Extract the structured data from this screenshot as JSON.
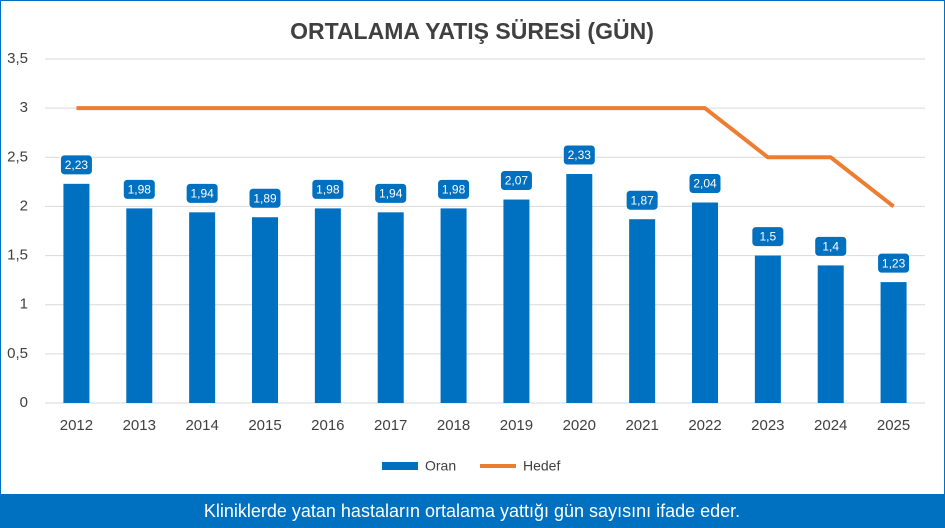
{
  "chart_data": {
    "type": "bar",
    "title": "ORTALAMA YATIŞ SÜRESİ (GÜN)",
    "categories": [
      "2012",
      "2013",
      "2014",
      "2015",
      "2016",
      "2017",
      "2018",
      "2019",
      "2020",
      "2021",
      "2022",
      "2023",
      "2024",
      "2025"
    ],
    "series": [
      {
        "name": "Oran",
        "type": "bar",
        "color": "#0070c0",
        "values": [
          2.23,
          1.98,
          1.94,
          1.89,
          1.98,
          1.94,
          1.98,
          2.07,
          2.33,
          1.87,
          2.04,
          1.5,
          1.4,
          1.23
        ],
        "value_labels": [
          "2,23",
          "1,98",
          "1,94",
          "1,89",
          "1,98",
          "1,94",
          "1,98",
          "2,07",
          "2,33",
          "1,87",
          "2,04",
          "1,5",
          "1,4",
          "1,23"
        ]
      },
      {
        "name": "Hedef",
        "type": "line",
        "color": "#ed7d31",
        "values": [
          3,
          3,
          3,
          3,
          3,
          3,
          3,
          3,
          3,
          3,
          3,
          2.5,
          2.5,
          2
        ]
      }
    ],
    "ylim": [
      0,
      3.5
    ],
    "yticks": [
      0,
      {
        "value": 0.5,
        "label": "0,5"
      },
      1,
      {
        "value": 1.5,
        "label": "1,5"
      },
      2,
      {
        "value": 2.5,
        "label": "2,5"
      },
      3,
      {
        "value": 3.5,
        "label": "3,5"
      }
    ],
    "grid": true,
    "legend": "bottom",
    "footer": "Kliniklerde yatan hastaların ortalama yattığı gün sayısını ifade eder."
  }
}
